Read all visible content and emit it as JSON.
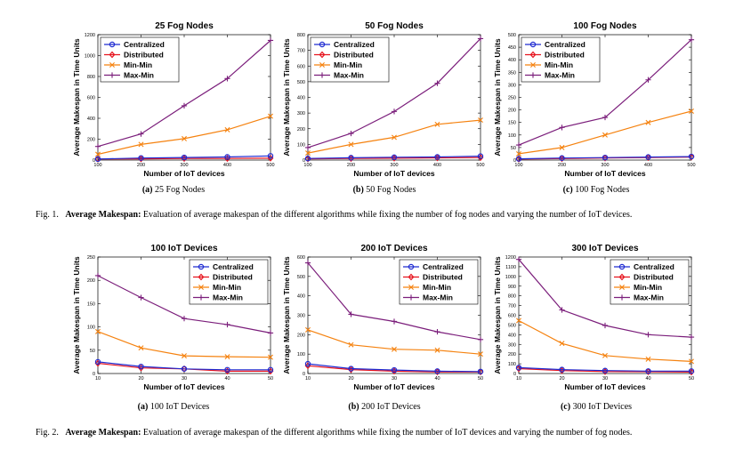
{
  "colors": {
    "Centralized": "#1f2bd1",
    "Distributed": "#e6141e",
    "Min-Min": "#f5820f",
    "Max-Min": "#7b1e7b"
  },
  "markers": {
    "Centralized": "circle",
    "Distributed": "diamond",
    "Min-Min": "x",
    "Max-Min": "plus"
  },
  "figures": [
    {
      "number": "Fig. 1.",
      "caption_lead": "Average Makespan:",
      "caption_text": "Evaluation of average makespan of the different algorithms while fixing the number of fog nodes and varying the number of IoT devices."
    },
    {
      "number": "Fig. 2.",
      "caption_lead": "Average Makespan:",
      "caption_text": "Evaluation of average makespan of the different algorithms while fixing the number of IoT devices and varying the number of fog nodes."
    }
  ],
  "chart_data": [
    {
      "type": "line",
      "title": "25 Fog Nodes",
      "sublabel_tag": "(a)",
      "sublabel_text": "25 Fog Nodes",
      "xlabel": "Number of IoT devices",
      "ylabel": "Average Makespan in Time Units",
      "x": [
        100,
        200,
        300,
        400,
        500
      ],
      "xticks": [
        "100",
        "200",
        "300",
        "400",
        "500"
      ],
      "xlim": [
        100,
        500
      ],
      "ylim": [
        0,
        1200
      ],
      "yticks": [
        "0",
        "200",
        "400",
        "600",
        "800",
        "1000",
        "1200"
      ],
      "legend_position": "top-left",
      "series": [
        {
          "name": "Centralized",
          "values": [
            10,
            20,
            25,
            30,
            40
          ]
        },
        {
          "name": "Distributed",
          "values": [
            10,
            12,
            15,
            15,
            18
          ]
        },
        {
          "name": "Min-Min",
          "values": [
            55,
            150,
            205,
            290,
            420
          ]
        },
        {
          "name": "Max-Min",
          "values": [
            130,
            250,
            520,
            780,
            1145
          ]
        }
      ]
    },
    {
      "type": "line",
      "title": "50 Fog Nodes",
      "sublabel_tag": "(b)",
      "sublabel_text": "50 Fog Nodes",
      "xlabel": "Number of IoT devices",
      "ylabel": "Average Makespan in Time Units",
      "x": [
        100,
        200,
        300,
        400,
        500
      ],
      "xticks": [
        "100",
        "200",
        "300",
        "400",
        "500"
      ],
      "xlim": [
        100,
        500
      ],
      "ylim": [
        0,
        800
      ],
      "yticks": [
        "0",
        "100",
        "200",
        "300",
        "400",
        "500",
        "600",
        "700",
        "800"
      ],
      "legend_position": "top-left",
      "series": [
        {
          "name": "Centralized",
          "values": [
            10,
            15,
            18,
            20,
            25
          ]
        },
        {
          "name": "Distributed",
          "values": [
            8,
            10,
            12,
            14,
            16
          ]
        },
        {
          "name": "Min-Min",
          "values": [
            45,
            100,
            145,
            228,
            255
          ]
        },
        {
          "name": "Max-Min",
          "values": [
            80,
            170,
            310,
            490,
            775
          ]
        }
      ]
    },
    {
      "type": "line",
      "title": "100 Fog Nodes",
      "sublabel_tag": "(c)",
      "sublabel_text": "100 Fog Nodes",
      "xlabel": "Number of IoT devices",
      "ylabel": "Average Makespan in Time Units",
      "x": [
        100,
        200,
        300,
        400,
        500
      ],
      "xticks": [
        "100",
        "200",
        "300",
        "400",
        "500"
      ],
      "xlim": [
        100,
        500
      ],
      "ylim": [
        0,
        500
      ],
      "yticks": [
        "0",
        "50",
        "100",
        "150",
        "200",
        "250",
        "300",
        "350",
        "400",
        "450",
        "500"
      ],
      "legend_position": "top-left",
      "series": [
        {
          "name": "Centralized",
          "values": [
            5,
            8,
            10,
            12,
            14
          ]
        },
        {
          "name": "Distributed",
          "values": [
            4,
            6,
            8,
            10,
            12
          ]
        },
        {
          "name": "Min-Min",
          "values": [
            25,
            50,
            100,
            150,
            195
          ]
        },
        {
          "name": "Max-Min",
          "values": [
            60,
            130,
            170,
            320,
            480
          ]
        }
      ]
    },
    {
      "type": "line",
      "title": "100 IoT Devices",
      "sublabel_tag": "(a)",
      "sublabel_text": "100 IoT Devices",
      "xlabel": "Number of IoT devices",
      "ylabel": "Average Makespan in Time Units",
      "x": [
        10,
        20,
        30,
        40,
        50
      ],
      "xticks": [
        "10",
        "20",
        "30",
        "40",
        "50"
      ],
      "xlim": [
        10,
        50
      ],
      "ylim": [
        0,
        250
      ],
      "yticks": [
        "0",
        "50",
        "100",
        "150",
        "200",
        "250"
      ],
      "legend_position": "top-right",
      "series": [
        {
          "name": "Centralized",
          "values": [
            25,
            15,
            10,
            8,
            8
          ]
        },
        {
          "name": "Distributed",
          "values": [
            22,
            12,
            10,
            5,
            5
          ]
        },
        {
          "name": "Min-Min",
          "values": [
            90,
            55,
            38,
            36,
            35
          ]
        },
        {
          "name": "Max-Min",
          "values": [
            210,
            163,
            118,
            105,
            87
          ]
        }
      ]
    },
    {
      "type": "line",
      "title": "200 IoT Devices",
      "sublabel_tag": "(b)",
      "sublabel_text": "200 IoT Devices",
      "xlabel": "Number of IoT devices",
      "ylabel": "Average Makespan in Time Units",
      "x": [
        10,
        20,
        30,
        40,
        50
      ],
      "xticks": [
        "10",
        "20",
        "30",
        "40",
        "50"
      ],
      "xlim": [
        10,
        50
      ],
      "ylim": [
        0,
        600
      ],
      "yticks": [
        "0",
        "100",
        "200",
        "300",
        "400",
        "500",
        "600"
      ],
      "legend_position": "top-right",
      "series": [
        {
          "name": "Centralized",
          "values": [
            50,
            25,
            18,
            12,
            10
          ]
        },
        {
          "name": "Distributed",
          "values": [
            40,
            20,
            12,
            8,
            8
          ]
        },
        {
          "name": "Min-Min",
          "values": [
            225,
            148,
            125,
            120,
            100
          ]
        },
        {
          "name": "Max-Min",
          "values": [
            570,
            305,
            268,
            215,
            175
          ]
        }
      ]
    },
    {
      "type": "line",
      "title": "300 IoT Devices",
      "sublabel_tag": "(c)",
      "sublabel_text": "300 IoT Devices",
      "xlabel": "Number of IoT devices",
      "ylabel": "Average Makespan in Time Units",
      "x": [
        10,
        20,
        30,
        40,
        50
      ],
      "xticks": [
        "10",
        "20",
        "30",
        "40",
        "50"
      ],
      "xlim": [
        10,
        50
      ],
      "ylim": [
        0,
        1200
      ],
      "yticks": [
        "0",
        "100",
        "200",
        "300",
        "400",
        "500",
        "600",
        "700",
        "800",
        "900",
        "1000",
        "1100",
        "1200"
      ],
      "legend_position": "top-right",
      "series": [
        {
          "name": "Centralized",
          "values": [
            60,
            40,
            30,
            25,
            25
          ]
        },
        {
          "name": "Distributed",
          "values": [
            50,
            30,
            20,
            18,
            15
          ]
        },
        {
          "name": "Min-Min",
          "values": [
            545,
            310,
            185,
            148,
            125
          ]
        },
        {
          "name": "Max-Min",
          "values": [
            1175,
            655,
            495,
            400,
            375
          ]
        }
      ]
    }
  ]
}
